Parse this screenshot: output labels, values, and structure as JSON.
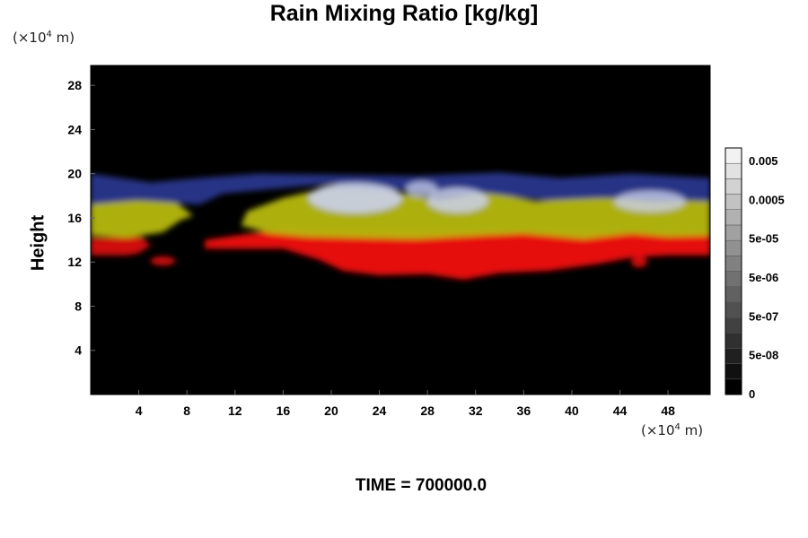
{
  "chart_data": {
    "type": "heatmap",
    "title": "Rain Mixing Ratio [kg/kg]",
    "xlabel": "",
    "ylabel": "Height",
    "x_unit": {
      "base": "(×10",
      "exp": "4",
      "suffix": " m)"
    },
    "y_unit": {
      "base": "(×10",
      "exp": "4",
      "suffix": " m)"
    },
    "xlim": [
      0,
      51.5
    ],
    "ylim": [
      0,
      29.8
    ],
    "x_ticks": [
      4,
      8,
      12,
      16,
      20,
      24,
      28,
      32,
      36,
      40,
      44,
      48
    ],
    "y_ticks": [
      4,
      8,
      12,
      16,
      20,
      24,
      28
    ],
    "colorbar": {
      "labels": [
        "0.005",
        "0.0005",
        "5e-05",
        "5e-06",
        "5e-07",
        "5e-08",
        "0"
      ],
      "levels": 16
    },
    "layers": [
      {
        "name": "red",
        "color": "#e60f0f",
        "y_range": [
          10.5,
          15
        ]
      },
      {
        "name": "yellow",
        "color": "#b6b80a",
        "y_range": [
          14,
          18
        ]
      },
      {
        "name": "blue",
        "color": "#2d3c9e",
        "y_range": [
          16.5,
          20
        ]
      },
      {
        "name": "white",
        "color": "#c9d0ee",
        "y_range": [
          17,
          20
        ]
      }
    ],
    "background": "#000000"
  },
  "footer": {
    "time_label": "TIME = 700000.0"
  }
}
